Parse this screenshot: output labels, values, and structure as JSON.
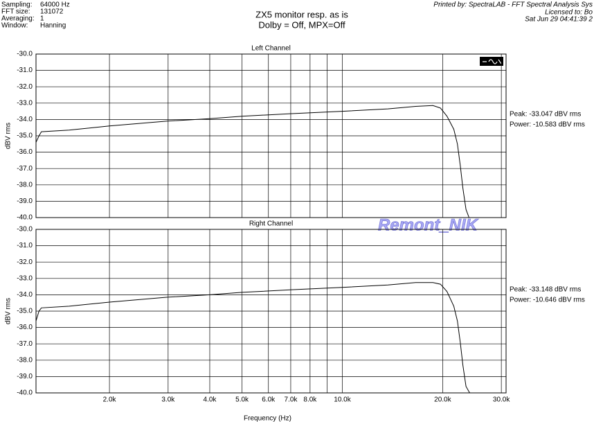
{
  "header": {
    "fields": [
      [
        "Sampling:",
        "64000 Hz"
      ],
      [
        "FFT size:",
        "131072"
      ],
      [
        "Averaging:",
        "1"
      ],
      [
        "Window:",
        "Hanning"
      ]
    ],
    "title": "ZX5 monitor resp. as is",
    "subtitle": "Dolby = Off, MPX=Off",
    "printed": "Printed by: SpectraLAB - FFT Spectral Analysis Sys",
    "licensed": "Licensed to: Bo",
    "date": "Sat Jun 29 04:41:39 2",
    "watermark": "Remont_NIK"
  },
  "chart_data": [
    {
      "type": "line",
      "title": "Left Channel",
      "y_label": "dBV rms",
      "log_x": true,
      "grid": true,
      "xlim": [
        1204,
        31000
      ],
      "ylim": [
        -40,
        -30
      ],
      "xgrid_lines": [
        2000,
        3000,
        4000,
        5000,
        6000,
        7000,
        8000,
        9000,
        10000,
        20000,
        30000
      ],
      "yticks": [
        {
          "value": -30,
          "label": "-30.0"
        },
        {
          "value": -31,
          "label": "-31.0"
        },
        {
          "value": -32,
          "label": "-32.0"
        },
        {
          "value": -33,
          "label": "-33.0"
        },
        {
          "value": -34,
          "label": "-34.0"
        },
        {
          "value": -35,
          "label": "-35.0"
        },
        {
          "value": -36,
          "label": "-36.0"
        },
        {
          "value": -37,
          "label": "-37.0"
        },
        {
          "value": -38,
          "label": "-38.0"
        },
        {
          "value": -39,
          "label": "-39.0"
        },
        {
          "value": -40,
          "label": "-40.0"
        }
      ],
      "annotations": [
        "Peak: -33.047 dBV rms",
        "Power: -10.583 dBV rms"
      ],
      "series": [
        {
          "name": "Left Channel",
          "color": "#000000",
          "x": [
            1204,
            1229,
            1250,
            1514,
            2000,
            2984,
            4000,
            4998,
            6970,
            9990,
            13700,
            16600,
            18700,
            19700,
            20600,
            21600,
            22150,
            22580,
            23000,
            23500,
            24000
          ],
          "values": [
            -35.4,
            -35.0,
            -34.75,
            -34.65,
            -34.4,
            -34.1,
            -33.95,
            -33.8,
            -33.65,
            -33.5,
            -33.35,
            -33.2,
            -33.15,
            -33.3,
            -33.8,
            -34.6,
            -35.5,
            -36.8,
            -38.2,
            -39.5,
            -40
          ]
        }
      ]
    },
    {
      "type": "line",
      "title": "Right Channel",
      "y_label": "dBV rms",
      "x_label": "Frequency (Hz)",
      "log_x": true,
      "grid": true,
      "xlim": [
        1204,
        31000
      ],
      "ylim": [
        -40,
        -30
      ],
      "xticks": [
        {
          "value": 2000,
          "label": "2.0k"
        },
        {
          "value": 3000,
          "label": "3.0k"
        },
        {
          "value": 4000,
          "label": "4.0k"
        },
        {
          "value": 5000,
          "label": "5.0k"
        },
        {
          "value": 6000,
          "label": "6.0k"
        },
        {
          "value": 7000,
          "label": "7.0k"
        },
        {
          "value": 8000,
          "label": "8.0k"
        },
        {
          "value": 10000,
          "label": "10.0k"
        },
        {
          "value": 20000,
          "label": "20.0k"
        },
        {
          "value": 30000,
          "label": "30.0k"
        }
      ],
      "minor_xticks": [
        9000
      ],
      "yticks": [
        {
          "value": -30,
          "label": "-30.0"
        },
        {
          "value": -31,
          "label": "-31.0"
        },
        {
          "value": -32,
          "label": "-32.0"
        },
        {
          "value": -33,
          "label": "-33.0"
        },
        {
          "value": -34,
          "label": "-34.0"
        },
        {
          "value": -35,
          "label": "-35.0"
        },
        {
          "value": -36,
          "label": "-36.0"
        },
        {
          "value": -37,
          "label": "-37.0"
        },
        {
          "value": -38,
          "label": "-38.0"
        },
        {
          "value": -39,
          "label": "-39.0"
        },
        {
          "value": -40,
          "label": "-40.0"
        }
      ],
      "annotations": [
        "Peak: -33.148 dBV rms",
        "Power: -10.646 dBV rms"
      ],
      "series": [
        {
          "name": "Right Channel",
          "color": "#000000",
          "x": [
            1204,
            1229,
            1250,
            1514,
            2000,
            2984,
            4000,
            4998,
            6970,
            9990,
            13700,
            16600,
            18700,
            19700,
            20600,
            21600,
            22150,
            22580,
            23000,
            23500,
            24100,
            31000
          ],
          "values": [
            -35.6,
            -35.0,
            -34.8,
            -34.7,
            -34.45,
            -34.15,
            -34.0,
            -33.85,
            -33.7,
            -33.55,
            -33.4,
            -33.25,
            -33.25,
            -33.35,
            -33.8,
            -34.7,
            -35.6,
            -36.9,
            -38.3,
            -39.6,
            -40,
            -40
          ]
        }
      ]
    }
  ]
}
